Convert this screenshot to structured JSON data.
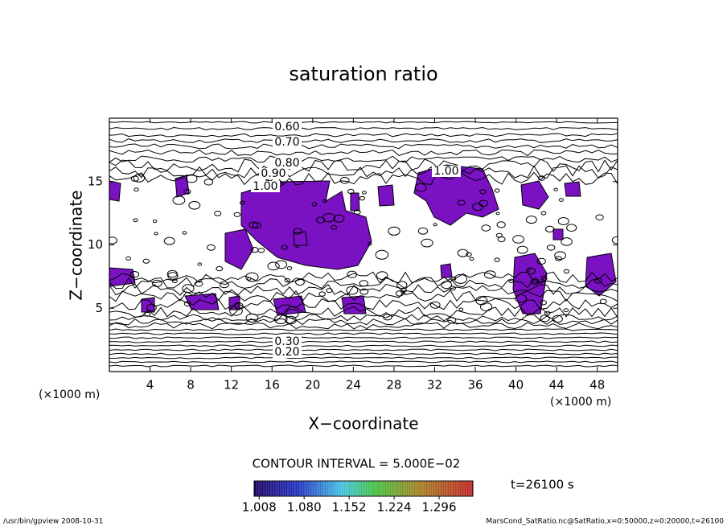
{
  "chart_data": {
    "type": "contour",
    "title": "saturation ratio",
    "x_label": "X−coordinate",
    "y_label": "Z−coordinate",
    "x_unit": "(×1000 m)",
    "y_unit": "(×1000 m)",
    "xlim": [
      0,
      50
    ],
    "xticks": [
      4,
      8,
      12,
      16,
      20,
      24,
      28,
      32,
      36,
      40,
      44,
      48
    ],
    "ylim": [
      0,
      20
    ],
    "yticks": [
      5,
      10,
      15
    ],
    "grid": false,
    "shade_color": "#7a12c4",
    "contour_labels": [
      "0.60",
      "0.70",
      "0.80",
      "0.90",
      "1.00",
      "1.00",
      "0.30",
      "0.20"
    ],
    "contour_interval": "CONTOUR INTERVAL = 5.000E−02",
    "time_label": "t=26100 s",
    "colorbar_lim": [
      1.0,
      1.35
    ],
    "colorbar_ticks": [
      1.008,
      {
        "value": 1.08,
        "label": "1.080"
      },
      1.152,
      1.224,
      1.296
    ],
    "footer_left": "/usr/bin/gpview   2008-10-31",
    "footer_right": "MarsCond_SatRatio.nc@SatRatio,x=0:50000,z=0:20000,t=26100"
  }
}
